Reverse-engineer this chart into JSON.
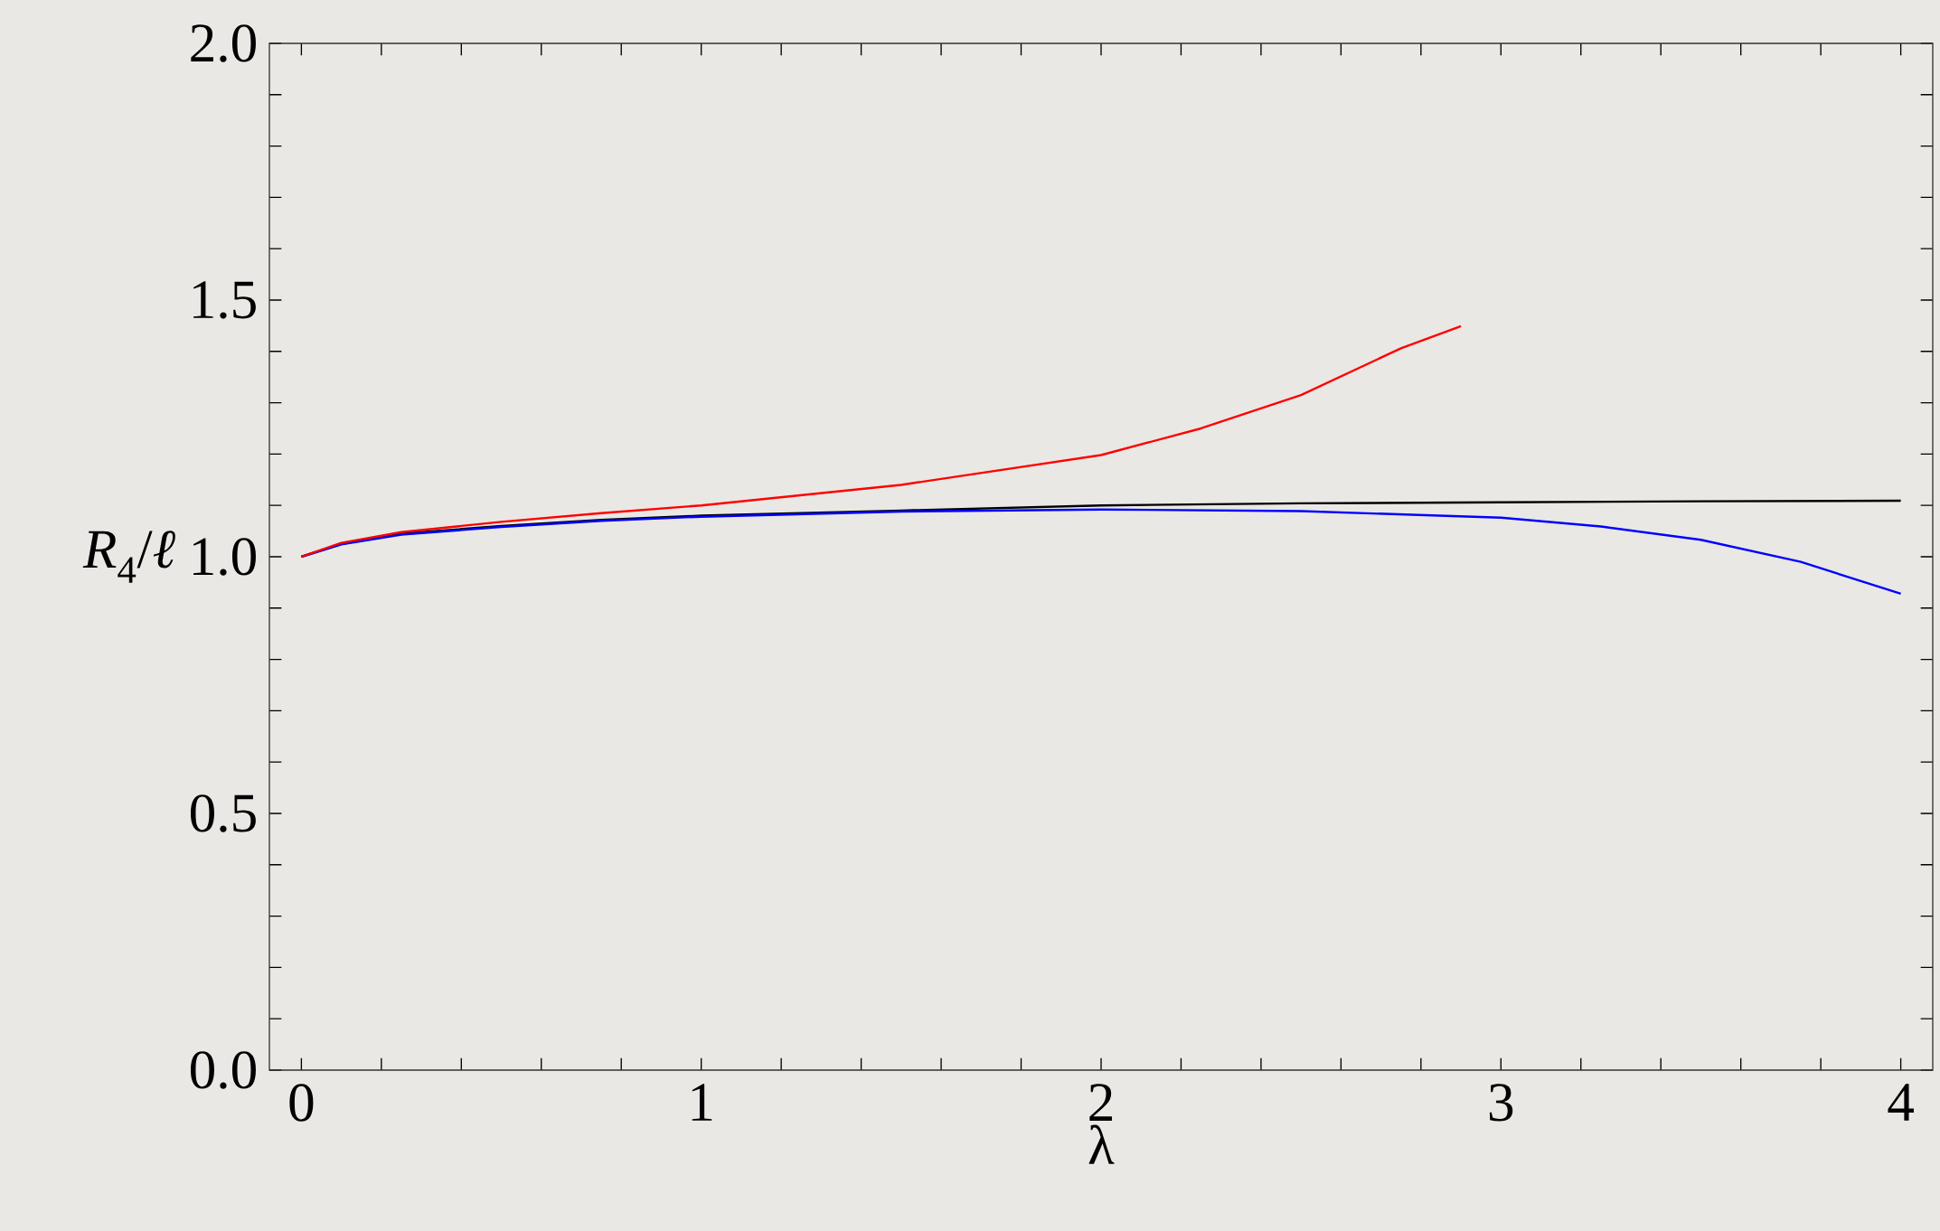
{
  "chart_data": {
    "type": "line",
    "xlabel": "λ",
    "ylabel": "*R*$_{4}$/*ℓ*",
    "xlim": [
      -0.08,
      4.08
    ],
    "ylim": [
      0,
      2
    ],
    "xticks": [
      0,
      {
        "value": 0.2,
        "label": null
      },
      {
        "value": 0.4,
        "label": null
      },
      {
        "value": 0.6,
        "label": null
      },
      {
        "value": 0.8,
        "label": null
      },
      1,
      {
        "value": 1.2,
        "label": null
      },
      {
        "value": 1.4,
        "label": null
      },
      {
        "value": 1.6,
        "label": null
      },
      {
        "value": 1.8,
        "label": null
      },
      2,
      {
        "value": 2.2,
        "label": null
      },
      {
        "value": 2.4,
        "label": null
      },
      {
        "value": 2.6,
        "label": null
      },
      {
        "value": 2.8,
        "label": null
      },
      3,
      {
        "value": 3.2,
        "label": null
      },
      {
        "value": 3.4,
        "label": null
      },
      {
        "value": 3.6,
        "label": null
      },
      {
        "value": 3.8,
        "label": null
      },
      4
    ],
    "yticks": [
      {
        "value": 0,
        "label": "0.0"
      },
      {
        "value": 0.1,
        "label": null
      },
      {
        "value": 0.2,
        "label": null
      },
      {
        "value": 0.3,
        "label": null
      },
      {
        "value": 0.4,
        "label": null
      },
      {
        "value": 0.5,
        "label": "0.5"
      },
      {
        "value": 0.6,
        "label": null
      },
      {
        "value": 0.7,
        "label": null
      },
      {
        "value": 0.8,
        "label": null
      },
      {
        "value": 0.9,
        "label": null
      },
      {
        "value": 1,
        "label": "1.0"
      },
      {
        "value": 1.1,
        "label": null
      },
      {
        "value": 1.2,
        "label": null
      },
      {
        "value": 1.3,
        "label": null
      },
      {
        "value": 1.4,
        "label": null
      },
      {
        "value": 1.5,
        "label": "1.5"
      },
      {
        "value": 1.6,
        "label": null
      },
      {
        "value": 1.7,
        "label": null
      },
      {
        "value": 1.8,
        "label": null
      },
      {
        "value": 1.9,
        "label": null
      },
      {
        "value": 2,
        "label": "2.0"
      }
    ],
    "grid": false,
    "marker": "none",
    "line_style": "solid",
    "series": [
      {
        "color": "#000000",
        "x": [
          0,
          0.1,
          0.25,
          0.5,
          0.75,
          1,
          1.5,
          2,
          2.5,
          3,
          3.5,
          4
        ],
        "values": [
          1.0,
          1.025,
          1.045,
          1.06,
          1.072,
          1.08,
          1.09,
          1.1,
          1.104,
          1.106,
          1.108,
          1.109
        ]
      },
      {
        "color": "#0000ff",
        "x": [
          0,
          0.1,
          0.25,
          0.5,
          0.75,
          1,
          1.5,
          2,
          2.5,
          3,
          3.25,
          3.5,
          3.75,
          4
        ],
        "values": [
          1.0,
          1.024,
          1.043,
          1.058,
          1.07,
          1.078,
          1.088,
          1.092,
          1.089,
          1.076,
          1.059,
          1.033,
          0.99,
          0.928
        ]
      },
      {
        "color": "#ff0000",
        "x": [
          0,
          0.1,
          0.25,
          0.5,
          0.75,
          1,
          1.5,
          2,
          2.25,
          2.5,
          2.75,
          2.9
        ],
        "values": [
          1.0,
          1.027,
          1.048,
          1.068,
          1.085,
          1.1,
          1.14,
          1.198,
          1.25,
          1.315,
          1.406,
          1.449
        ]
      }
    ]
  }
}
